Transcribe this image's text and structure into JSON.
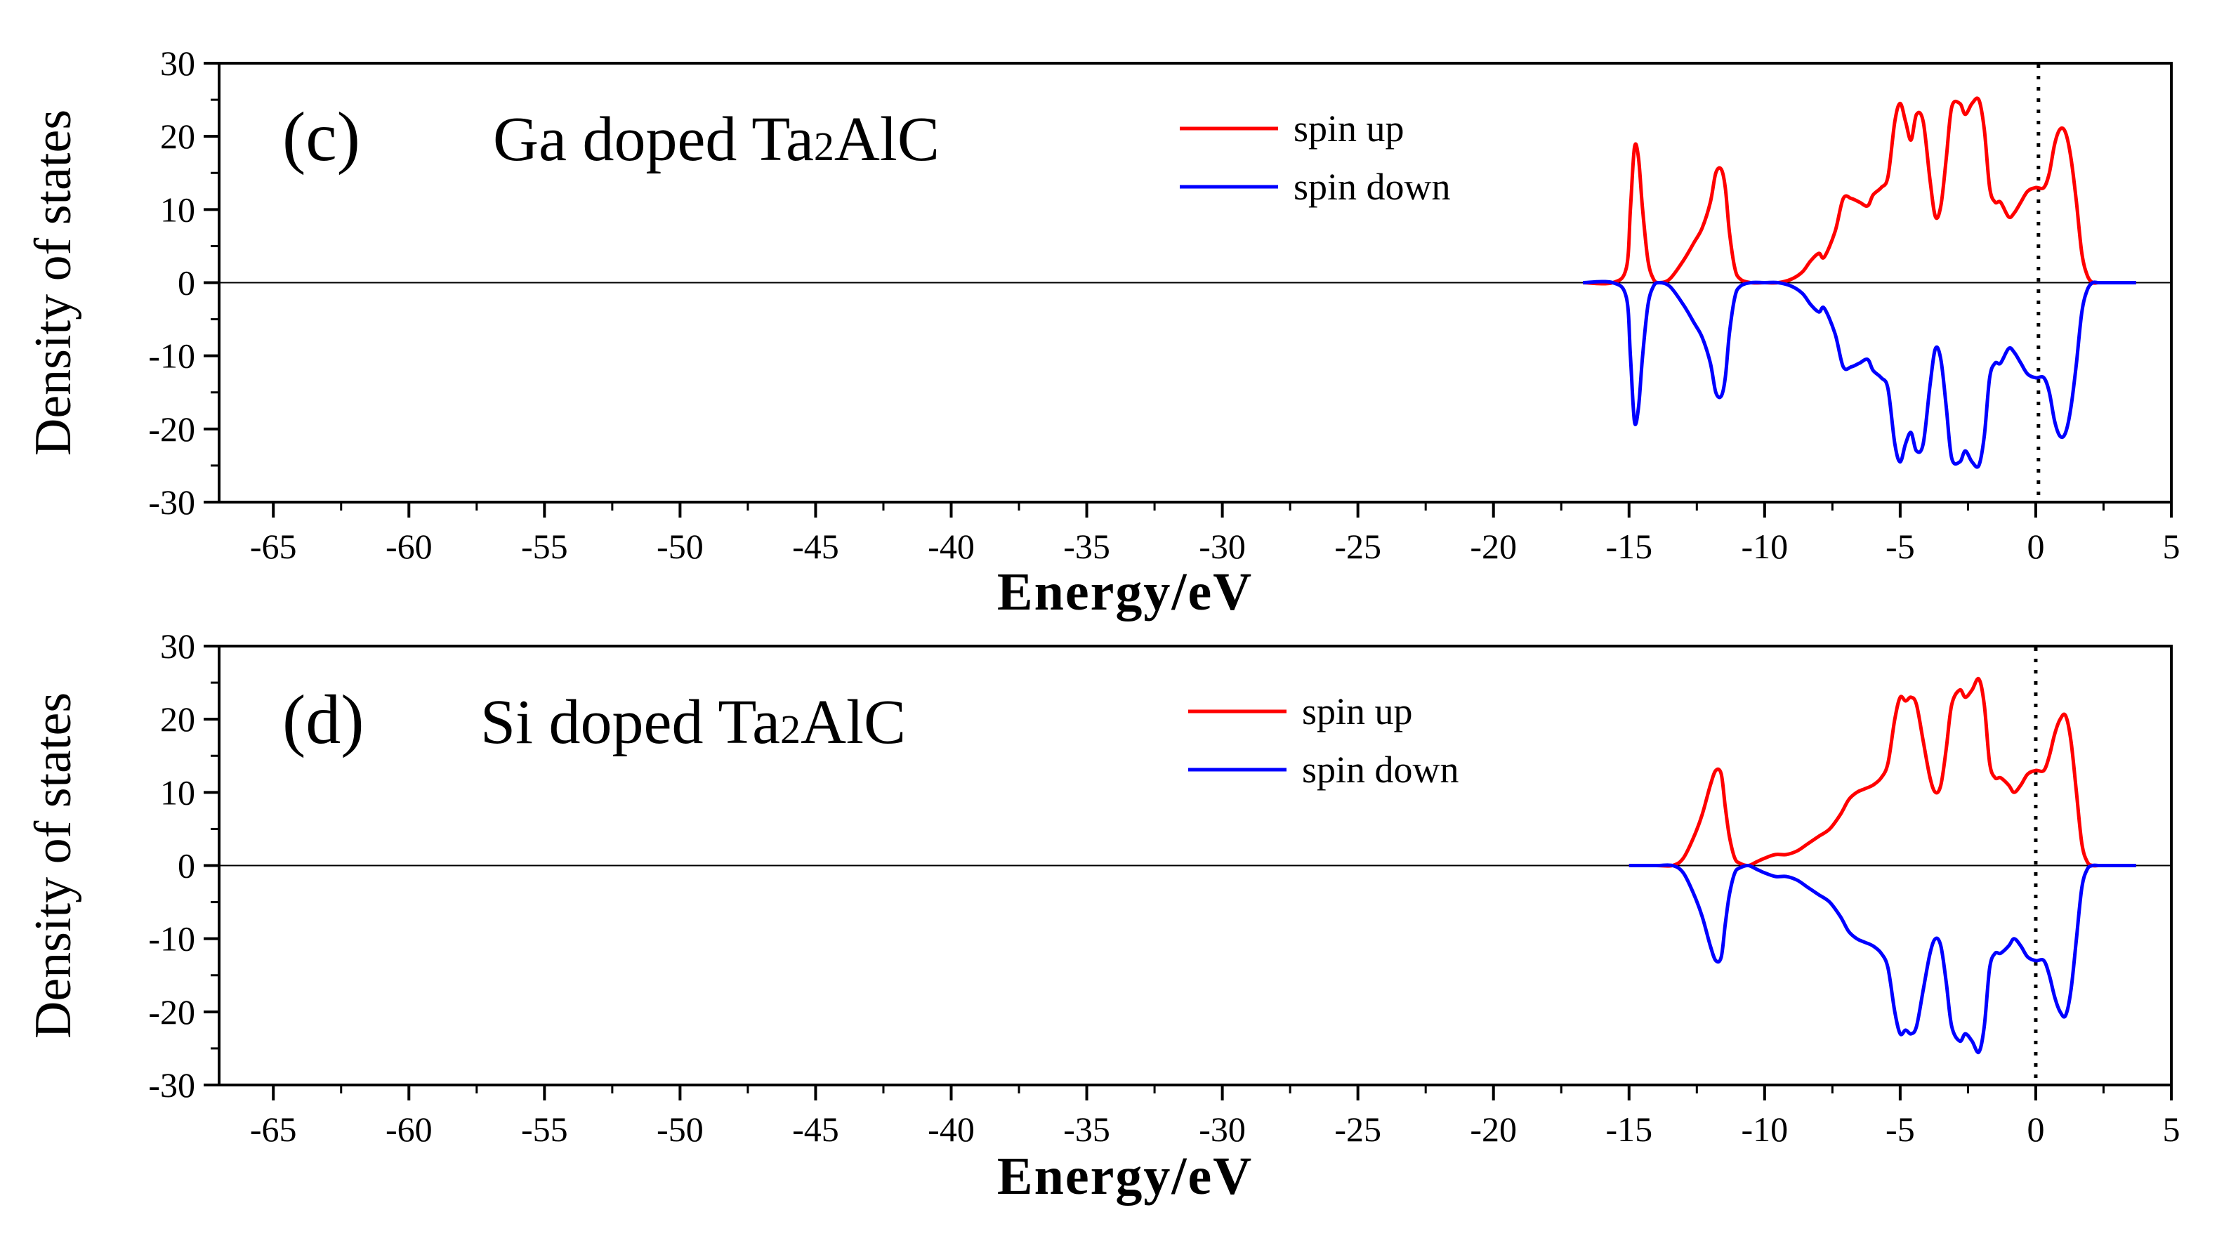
{
  "chart_data": [
    {
      "type": "line",
      "panel_label": "(c)",
      "title_parts": [
        "Ga doped Ta",
        "2",
        "AlC"
      ],
      "xlabel": "Energy/eV",
      "ylabel": "Density of states",
      "xlim": [
        -67,
        5
      ],
      "ylim": [
        -30,
        30
      ],
      "xticks": [
        -65,
        -60,
        -55,
        -50,
        -45,
        -40,
        -35,
        -30,
        -25,
        -20,
        -15,
        -10,
        -5,
        0,
        5
      ],
      "yticks": [
        30,
        20,
        10,
        0,
        -10,
        -20,
        -30
      ],
      "fermi_level": 0.1,
      "legend_position": "top-center-right",
      "series": [
        {
          "name": "spin up",
          "color": "#ff0000",
          "x": [
            -16.7,
            -15.6,
            -15.1,
            -14.95,
            -14.8,
            -14.65,
            -14.5,
            -14.3,
            -14.1,
            -13.9,
            -13.5,
            -13.0,
            -12.6,
            -12.3,
            -12.0,
            -11.8,
            -11.6,
            -11.45,
            -11.3,
            -11.1,
            -10.9,
            -10.5,
            -10.0,
            -9.5,
            -9.0,
            -8.6,
            -8.3,
            -8.0,
            -7.8,
            -7.4,
            -7.1,
            -6.8,
            -6.5,
            -6.2,
            -6.0,
            -5.7,
            -5.45,
            -5.2,
            -5.0,
            -4.8,
            -4.6,
            -4.4,
            -4.15,
            -3.9,
            -3.7,
            -3.5,
            -3.3,
            -3.1,
            -2.8,
            -2.6,
            -2.35,
            -2.1,
            -1.9,
            -1.7,
            -1.5,
            -1.3,
            -1.0,
            -0.8,
            -0.55,
            -0.3,
            0.0,
            0.3,
            0.5,
            0.7,
            0.9,
            1.1,
            1.3,
            1.5,
            1.7,
            1.9,
            2.1,
            2.3,
            2.6,
            3.0,
            3.7
          ],
          "values": [
            0,
            0,
            2,
            10,
            18.5,
            17,
            10,
            3,
            0.5,
            0,
            0.5,
            3,
            5.5,
            7.5,
            11,
            15,
            15.5,
            13,
            7,
            2,
            0.5,
            0,
            0,
            0,
            0.5,
            1.5,
            3,
            4,
            3.5,
            7,
            11.5,
            11.5,
            11,
            10.5,
            12,
            13,
            14.5,
            22,
            24.5,
            22,
            19.5,
            23,
            22,
            14,
            9,
            10.5,
            17,
            24,
            24.5,
            23,
            24.5,
            25,
            21,
            13,
            11,
            11,
            9,
            9.5,
            11,
            12.5,
            13,
            13,
            15,
            19,
            21,
            20.5,
            17,
            11,
            4,
            1,
            0,
            0,
            0,
            0,
            0
          ]
        },
        {
          "name": "spin down",
          "color": "#0000ff",
          "x": [
            -16.7,
            -15.6,
            -15.1,
            -14.95,
            -14.8,
            -14.65,
            -14.5,
            -14.3,
            -14.1,
            -13.9,
            -13.5,
            -13.0,
            -12.6,
            -12.3,
            -12.0,
            -11.8,
            -11.6,
            -11.45,
            -11.3,
            -11.1,
            -10.9,
            -10.5,
            -10.0,
            -9.5,
            -9.0,
            -8.6,
            -8.3,
            -8.0,
            -7.8,
            -7.4,
            -7.1,
            -6.8,
            -6.5,
            -6.2,
            -6.0,
            -5.7,
            -5.45,
            -5.2,
            -5.0,
            -4.8,
            -4.6,
            -4.4,
            -4.15,
            -3.9,
            -3.7,
            -3.5,
            -3.3,
            -3.1,
            -2.8,
            -2.6,
            -2.35,
            -2.1,
            -1.9,
            -1.7,
            -1.5,
            -1.3,
            -1.0,
            -0.8,
            -0.55,
            -0.3,
            0.0,
            0.3,
            0.5,
            0.7,
            0.9,
            1.1,
            1.3,
            1.5,
            1.7,
            1.9,
            2.1,
            2.3,
            2.6,
            3.0,
            3.7
          ],
          "values": [
            0,
            0,
            -2,
            -10,
            -19,
            -17,
            -10,
            -3,
            -0.5,
            0,
            -0.5,
            -3,
            -5.5,
            -7.5,
            -11,
            -15,
            -15.5,
            -13,
            -7,
            -2,
            -0.5,
            0,
            0,
            0,
            -0.5,
            -1.5,
            -3,
            -4,
            -3.5,
            -7,
            -11.5,
            -11.5,
            -11,
            -10.5,
            -12,
            -13,
            -14.5,
            -22,
            -24.5,
            -22,
            -20.5,
            -23,
            -22,
            -14,
            -9,
            -10.5,
            -17,
            -24,
            -24.5,
            -23,
            -24.5,
            -25,
            -21,
            -13,
            -11,
            -11,
            -9,
            -9.5,
            -11,
            -12.5,
            -13,
            -13,
            -15,
            -19,
            -21,
            -20.5,
            -17,
            -11,
            -4,
            -1,
            0,
            0,
            0,
            0,
            0
          ]
        }
      ]
    },
    {
      "type": "line",
      "panel_label": "(d)",
      "title_parts": [
        "Si doped Ta",
        "2",
        "AlC"
      ],
      "xlabel": "Energy/eV",
      "ylabel": "Density of states",
      "xlim": [
        -67,
        5
      ],
      "ylim": [
        -30,
        30
      ],
      "xticks": [
        -65,
        -60,
        -55,
        -50,
        -45,
        -40,
        -35,
        -30,
        -25,
        -20,
        -15,
        -10,
        -5,
        0,
        5
      ],
      "yticks": [
        30,
        20,
        10,
        0,
        -10,
        -20,
        -30
      ],
      "fermi_level": 0.0,
      "legend_position": "top-center-right",
      "series": [
        {
          "name": "spin up",
          "color": "#ff0000",
          "x": [
            -15.0,
            -14.0,
            -13.4,
            -13.0,
            -12.6,
            -12.3,
            -12.0,
            -11.8,
            -11.6,
            -11.45,
            -11.3,
            -11.1,
            -10.9,
            -10.6,
            -10.3,
            -10.0,
            -9.6,
            -9.2,
            -8.8,
            -8.4,
            -8.0,
            -7.6,
            -7.2,
            -6.9,
            -6.6,
            -6.3,
            -6.0,
            -5.7,
            -5.45,
            -5.2,
            -5.0,
            -4.8,
            -4.6,
            -4.4,
            -4.15,
            -3.9,
            -3.7,
            -3.5,
            -3.3,
            -3.1,
            -2.8,
            -2.6,
            -2.35,
            -2.1,
            -1.9,
            -1.7,
            -1.5,
            -1.3,
            -1.0,
            -0.8,
            -0.55,
            -0.3,
            0.0,
            0.3,
            0.5,
            0.7,
            0.9,
            1.1,
            1.3,
            1.5,
            1.7,
            1.9,
            2.1,
            2.3,
            2.6,
            3.0,
            3.7
          ],
          "values": [
            0,
            0,
            0,
            1,
            4,
            7,
            11,
            13,
            12.5,
            8,
            4,
            1,
            0.3,
            0,
            0.5,
            1,
            1.5,
            1.5,
            2,
            3,
            4,
            5,
            7,
            9,
            10,
            10.5,
            11,
            12,
            14,
            20,
            23,
            22.5,
            23,
            22,
            17,
            12,
            10,
            11,
            16,
            22,
            24,
            23,
            24,
            25.5,
            22,
            14,
            12,
            12,
            11,
            10,
            11,
            12.5,
            13,
            13,
            15,
            18,
            20,
            20.5,
            17,
            10,
            3,
            0.5,
            0,
            0,
            0,
            0,
            0
          ]
        },
        {
          "name": "spin down",
          "color": "#0000ff",
          "x": [
            -15.0,
            -14.0,
            -13.4,
            -13.0,
            -12.6,
            -12.3,
            -12.0,
            -11.8,
            -11.6,
            -11.45,
            -11.3,
            -11.1,
            -10.9,
            -10.6,
            -10.3,
            -10.0,
            -9.6,
            -9.2,
            -8.8,
            -8.4,
            -8.0,
            -7.6,
            -7.2,
            -6.9,
            -6.6,
            -6.3,
            -6.0,
            -5.7,
            -5.45,
            -5.2,
            -5.0,
            -4.8,
            -4.6,
            -4.4,
            -4.15,
            -3.9,
            -3.7,
            -3.5,
            -3.3,
            -3.1,
            -2.8,
            -2.6,
            -2.35,
            -2.1,
            -1.9,
            -1.7,
            -1.5,
            -1.3,
            -1.0,
            -0.8,
            -0.55,
            -0.3,
            0.0,
            0.3,
            0.5,
            0.7,
            0.9,
            1.1,
            1.3,
            1.5,
            1.7,
            1.9,
            2.1,
            2.3,
            2.6,
            3.0,
            3.7
          ],
          "values": [
            0,
            0,
            0,
            -1,
            -4,
            -7,
            -11,
            -13,
            -12.5,
            -8,
            -4,
            -1,
            -0.3,
            0,
            -0.5,
            -1,
            -1.5,
            -1.5,
            -2,
            -3,
            -4,
            -5,
            -7,
            -9,
            -10,
            -10.5,
            -11,
            -12,
            -14,
            -20,
            -23,
            -22.5,
            -23,
            -22,
            -17,
            -12,
            -10,
            -11,
            -16,
            -22,
            -24,
            -23,
            -24,
            -25.5,
            -22,
            -14,
            -12,
            -12,
            -11,
            -10,
            -11,
            -12.5,
            -13,
            -13,
            -15,
            -18,
            -20,
            -20.5,
            -17,
            -10,
            -3,
            -0.5,
            0,
            0,
            0,
            0,
            0
          ]
        }
      ]
    }
  ]
}
